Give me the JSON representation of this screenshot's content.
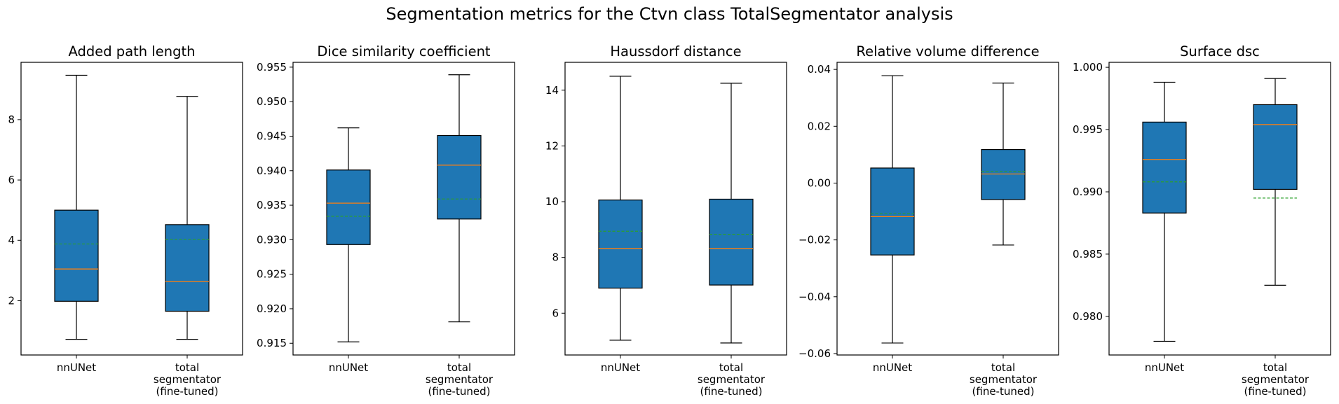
{
  "suptitle": "Segmentation metrics for the Ctvn class TotalSegmentator analysis",
  "colors": {
    "box_fill": "#1f77b4",
    "median": "#ff7f0e",
    "mean": "#2ca02c",
    "frame": "#000000"
  },
  "chart_data": [
    {
      "type": "box",
      "title": "Added path length",
      "ylim": [
        0.2,
        9.9
      ],
      "yticks": [
        2,
        4,
        6,
        8
      ],
      "ytick_labels": [
        "2",
        "4",
        "6",
        "8"
      ],
      "categories": [
        "nnUNet",
        "total\nsegmentator\n(fine-tuned)"
      ],
      "boxes": [
        {
          "whislo": 0.72,
          "q1": 1.98,
          "med": 3.05,
          "q3": 5.0,
          "whishi": 9.47,
          "mean": 3.88
        },
        {
          "whislo": 0.72,
          "q1": 1.65,
          "med": 2.63,
          "q3": 4.52,
          "whishi": 8.77,
          "mean": 4.03
        }
      ]
    },
    {
      "type": "box",
      "title": "Dice similarity coefficient",
      "ylim": [
        0.9133,
        0.9557
      ],
      "yticks": [
        0.915,
        0.92,
        0.925,
        0.93,
        0.935,
        0.94,
        0.945,
        0.95,
        0.955
      ],
      "ytick_labels": [
        "0.915",
        "0.920",
        "0.925",
        "0.930",
        "0.935",
        "0.940",
        "0.945",
        "0.950",
        "0.955"
      ],
      "categories": [
        "nnUNet",
        "total\nsegmentator\n(fine-tuned)"
      ],
      "boxes": [
        {
          "whislo": 0.9152,
          "q1": 0.9293,
          "med": 0.9353,
          "q3": 0.9401,
          "whishi": 0.9462,
          "mean": 0.9334
        },
        {
          "whislo": 0.9181,
          "q1": 0.933,
          "med": 0.9408,
          "q3": 0.9451,
          "whishi": 0.9539,
          "mean": 0.9359
        }
      ]
    },
    {
      "type": "box",
      "title": "Haussdorf distance",
      "ylim": [
        4.5,
        15.0
      ],
      "yticks": [
        6,
        8,
        10,
        12,
        14
      ],
      "ytick_labels": [
        "6",
        "8",
        "10",
        "12",
        "14"
      ],
      "categories": [
        "nnUNet",
        "total\nsegmentator\n(fine-tuned)"
      ],
      "boxes": [
        {
          "whislo": 5.03,
          "q1": 6.9,
          "med": 8.32,
          "q3": 10.06,
          "whishi": 14.5,
          "mean": 8.94
        },
        {
          "whislo": 4.93,
          "q1": 7.01,
          "med": 8.32,
          "q3": 10.09,
          "whishi": 14.25,
          "mean": 8.83
        }
      ]
    },
    {
      "type": "box",
      "title": "Relative volume difference",
      "ylim": [
        -0.0605,
        0.0425
      ],
      "yticks": [
        -0.06,
        -0.04,
        -0.02,
        0.0,
        0.02,
        0.04
      ],
      "ytick_labels": [
        "−0.06",
        "−0.04",
        "−0.02",
        "0.00",
        "0.02",
        "0.04"
      ],
      "categories": [
        "nnUNet",
        "total\nsegmentator\n(fine-tuned)"
      ],
      "boxes": [
        {
          "whislo": -0.0563,
          "q1": -0.0253,
          "med": -0.0118,
          "q3": 0.0053,
          "whishi": 0.0378,
          "mean": -0.0108
        },
        {
          "whislo": -0.0218,
          "q1": -0.0058,
          "med": 0.0032,
          "q3": 0.0118,
          "whishi": 0.0352,
          "mean": 0.004
        }
      ]
    },
    {
      "type": "box",
      "title": "Surface dsc",
      "ylim": [
        0.9769,
        1.0004
      ],
      "yticks": [
        0.98,
        0.985,
        0.99,
        0.995,
        1.0
      ],
      "ytick_labels": [
        "0.980",
        "0.985",
        "0.990",
        "0.995",
        "1.000"
      ],
      "categories": [
        "nnUNet",
        "total\nsegmentator\n(fine-tuned)"
      ],
      "boxes": [
        {
          "whislo": 0.978,
          "q1": 0.9883,
          "med": 0.9926,
          "q3": 0.9956,
          "whishi": 0.9988,
          "mean": 0.9908
        },
        {
          "whislo": 0.9825,
          "q1": 0.9902,
          "med": 0.9954,
          "q3": 0.997,
          "whishi": 0.9991,
          "mean": 0.9895
        }
      ]
    }
  ]
}
